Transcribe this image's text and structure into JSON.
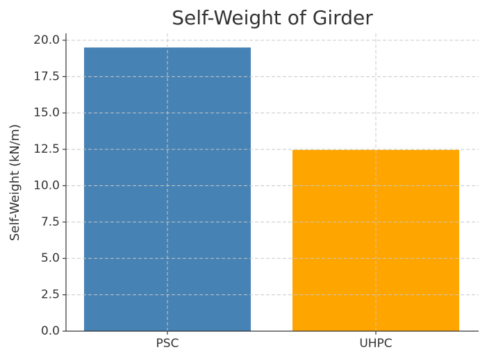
{
  "chart_data": {
    "type": "bar",
    "title": "Self-Weight of Girder",
    "y_label": "Self-Weight (kN/m)",
    "categories": [
      "PSC",
      "UHPC"
    ],
    "values": [
      19.5,
      12.46
    ],
    "colors": [
      "#4682b4",
      "#ffa500"
    ],
    "ylim": [
      0,
      20.475
    ],
    "yticks": [
      {
        "value": 0,
        "label": "0.0"
      },
      {
        "value": 2.5,
        "label": "2.5"
      },
      {
        "value": 5,
        "label": "5.0"
      },
      {
        "value": 7.5,
        "label": "7.5"
      },
      {
        "value": 10,
        "label": "10.0"
      },
      {
        "value": 12.5,
        "label": "12.5"
      },
      {
        "value": 15,
        "label": "15.0"
      },
      {
        "value": 17.5,
        "label": "17.5"
      },
      {
        "value": 20,
        "label": "20.0"
      }
    ],
    "grid": true
  }
}
